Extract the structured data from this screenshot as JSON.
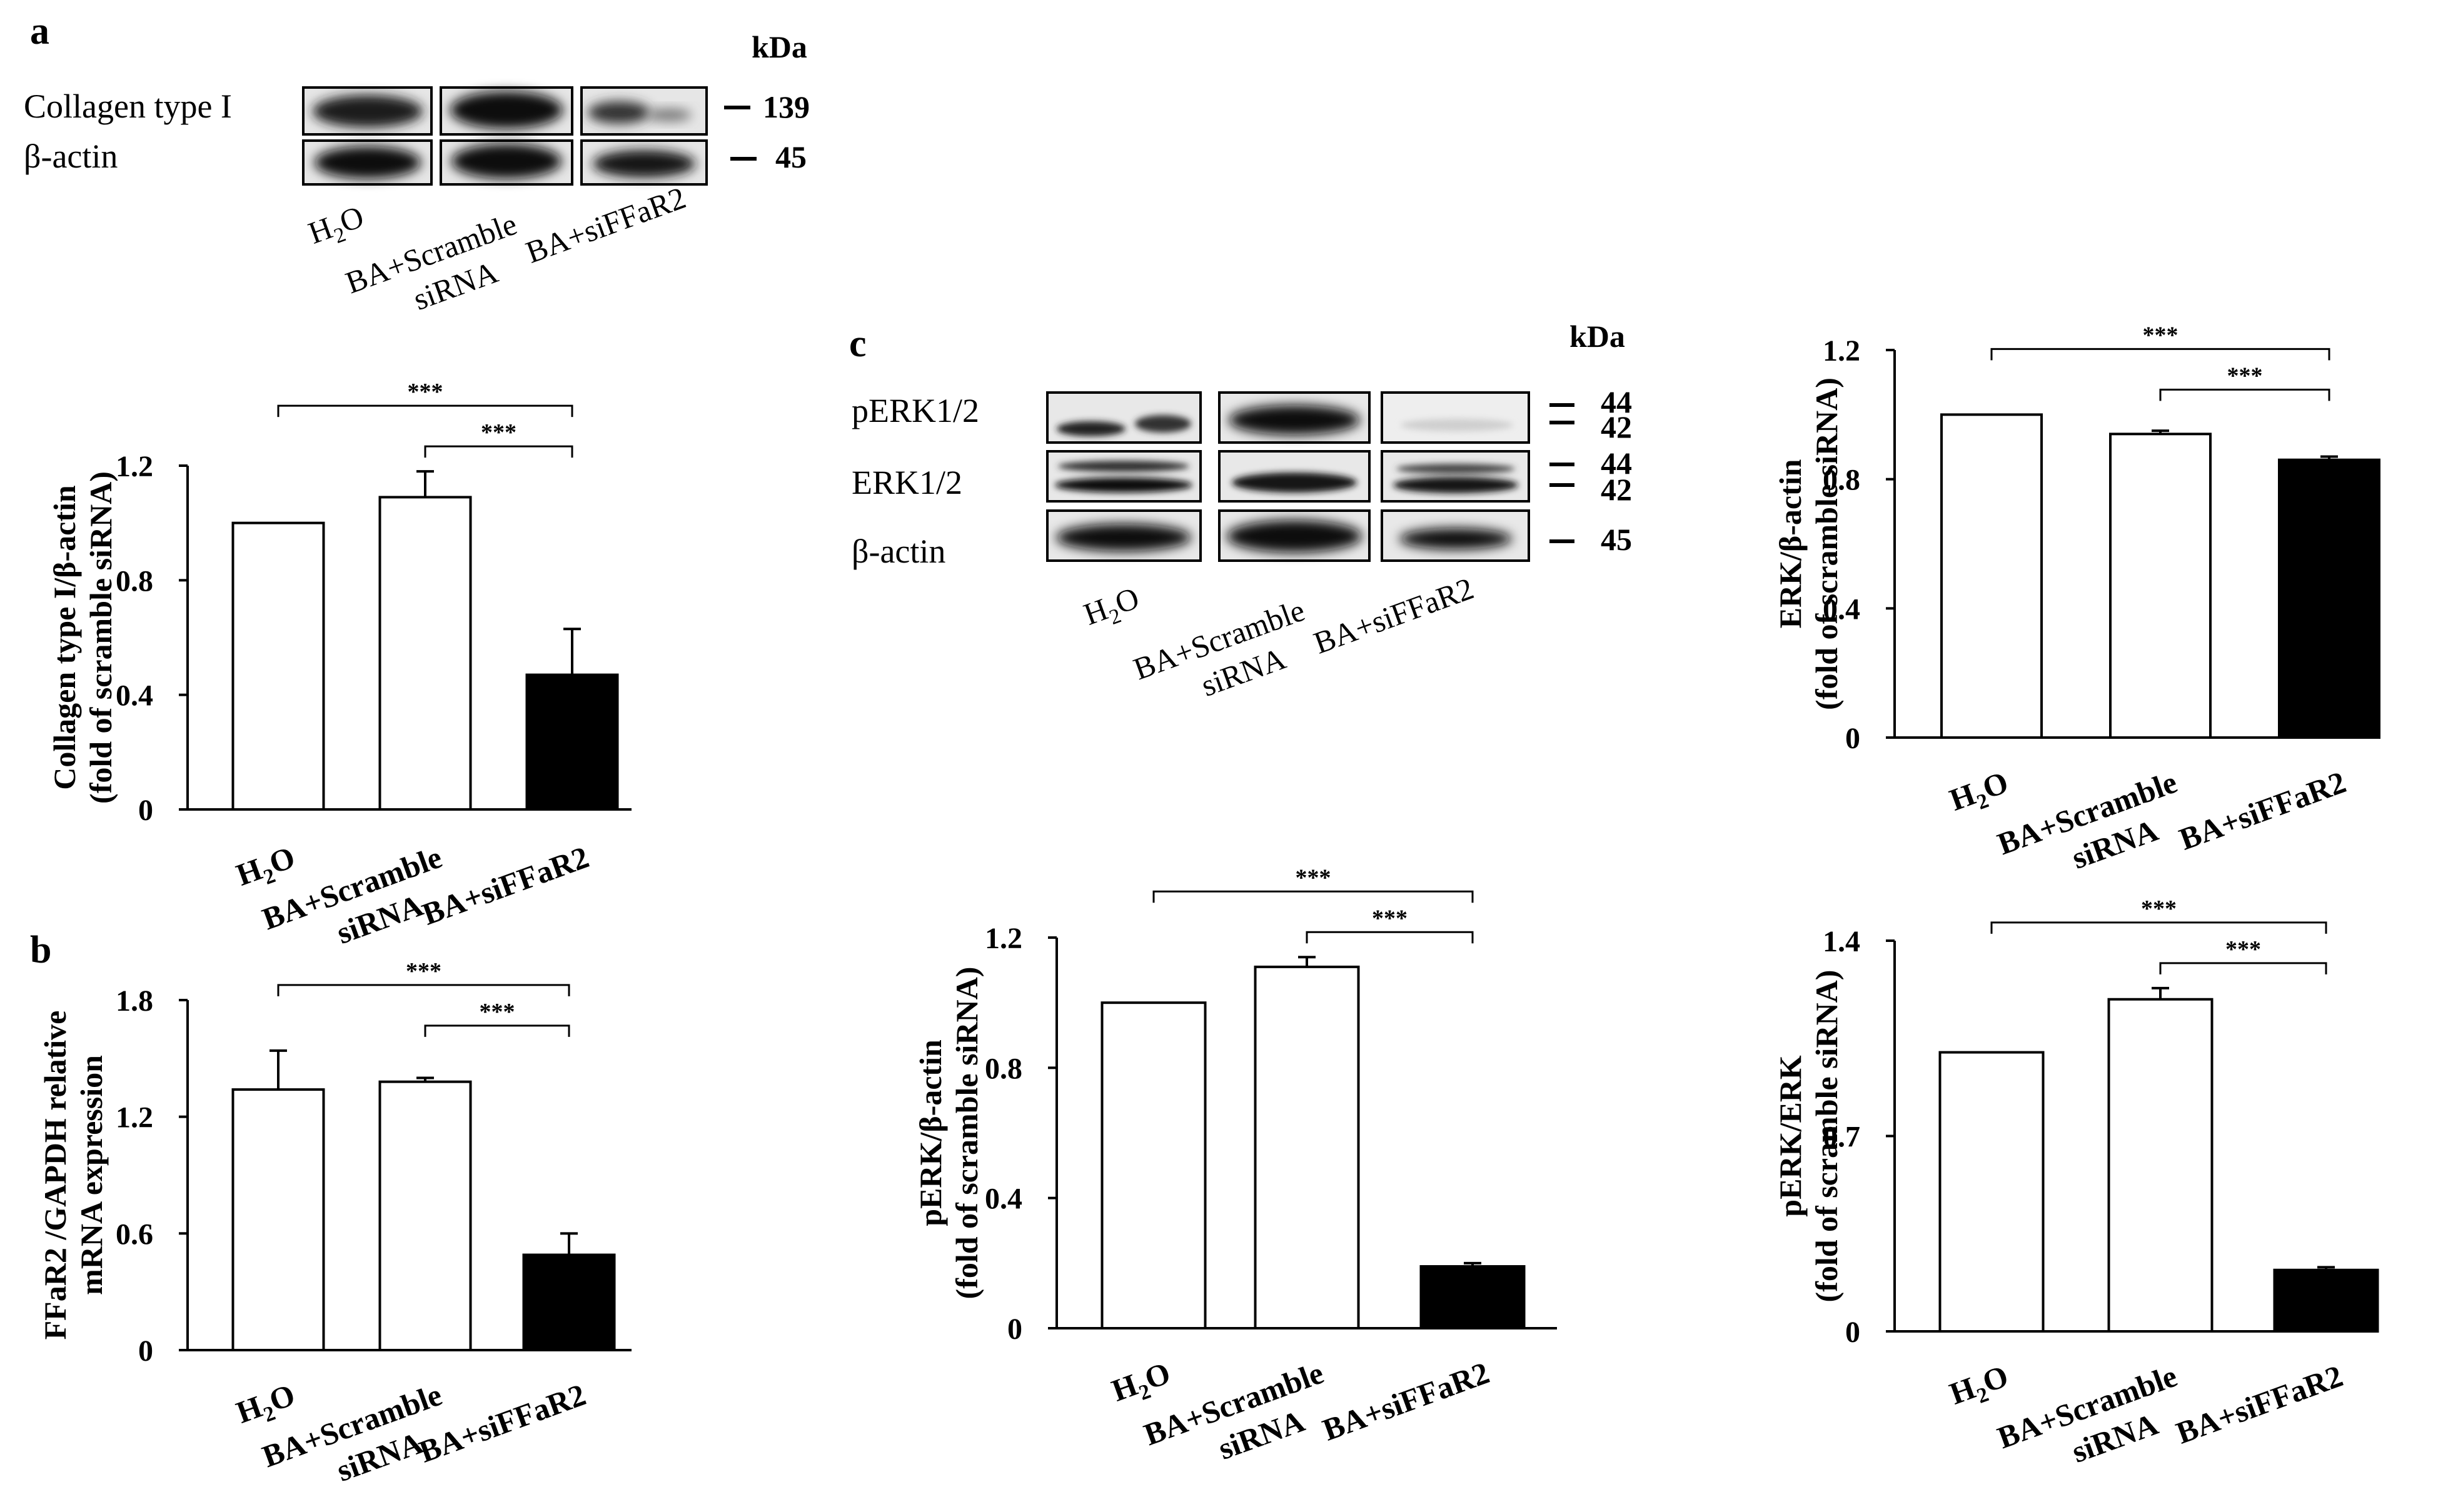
{
  "panels": {
    "a": "a",
    "b": "b",
    "c": "c"
  },
  "western_a": {
    "kda": "kDa",
    "bands": [
      "Collagen type I",
      "β-actin"
    ],
    "markers": [
      "139",
      "45"
    ],
    "lanes": [
      "H2O",
      "BA+Scramble siRNA",
      "BA+siFFaR2"
    ]
  },
  "western_c": {
    "kda": "kDa",
    "bands": [
      "pERK1/2",
      "ERK1/2",
      "β-actin"
    ],
    "markers": [
      "44",
      "42",
      "44",
      "42",
      "45"
    ],
    "lanes": [
      "H2O",
      "BA+Scramble siRNA",
      "BA+siFFaR2"
    ]
  },
  "colors": {
    "control": "#ffffff",
    "knockdown": "#000000",
    "stroke": "#000000"
  },
  "chart_data": [
    {
      "id": "collagen",
      "type": "bar",
      "categories": [
        "H2O",
        "BA+Scramble siRNA",
        "BA+siFFaR2"
      ],
      "values": [
        1.0,
        1.09,
        0.47
      ],
      "errors": [
        0,
        0.09,
        0.16
      ],
      "ylabel": [
        "Collagen type I/β-actin",
        "(fold of scramble siRNA)"
      ],
      "ylim": [
        0,
        1.2
      ],
      "yticks": [
        "0",
        "0.4",
        "0.8",
        "1.2"
      ],
      "significance": [
        "***",
        "***"
      ]
    },
    {
      "id": "ffar2",
      "type": "bar",
      "categories": [
        "H2O",
        "BA+Scramble siRNA",
        "BA+siFFaR2"
      ],
      "values": [
        1.34,
        1.38,
        0.49
      ],
      "errors": [
        0.2,
        0.02,
        0.11
      ],
      "ylabel": [
        "FFaR2 /GAPDH relative",
        "mRNA expression"
      ],
      "ylim": [
        0,
        1.8
      ],
      "yticks": [
        "0",
        "0.6",
        "1.2",
        "1.8"
      ],
      "significance": [
        "***",
        "***"
      ]
    },
    {
      "id": "erk_actin",
      "type": "bar",
      "categories": [
        "H2O",
        "BA+Scramble siRNA",
        "BA+siFFaR2"
      ],
      "values": [
        1.0,
        0.94,
        0.86
      ],
      "errors": [
        0,
        0.01,
        0.01
      ],
      "ylabel": [
        "ERK/β-actin",
        "(fold of scramble siRNA)"
      ],
      "ylim": [
        0,
        1.2
      ],
      "yticks": [
        "0",
        "0.4",
        "0.8",
        "1.2"
      ],
      "significance": [
        "***",
        "***"
      ]
    },
    {
      "id": "perk_actin",
      "type": "bar",
      "categories": [
        "H2O",
        "BA+Scramble siRNA",
        "BA+siFFaR2"
      ],
      "values": [
        1.0,
        1.11,
        0.19
      ],
      "errors": [
        0,
        0.03,
        0.01
      ],
      "ylabel": [
        "pERK/β-actin",
        "(fold of scramble siRNA)"
      ],
      "ylim": [
        0,
        1.2
      ],
      "yticks": [
        "0",
        "0.4",
        "0.8",
        "1.2"
      ],
      "significance": [
        "***",
        "***"
      ]
    },
    {
      "id": "perk_erk",
      "type": "bar",
      "categories": [
        "H2O",
        "BA+Scramble siRNA",
        "BA+siFFaR2"
      ],
      "values": [
        1.0,
        1.19,
        0.22
      ],
      "errors": [
        0,
        0.04,
        0.01
      ],
      "ylabel": [
        "pERK/ERK",
        "(fold of scramble siRNA)"
      ],
      "ylim": [
        0,
        1.4
      ],
      "yticks": [
        "0",
        "0.7",
        "1.4"
      ],
      "significance": [
        "***",
        "***"
      ]
    }
  ]
}
